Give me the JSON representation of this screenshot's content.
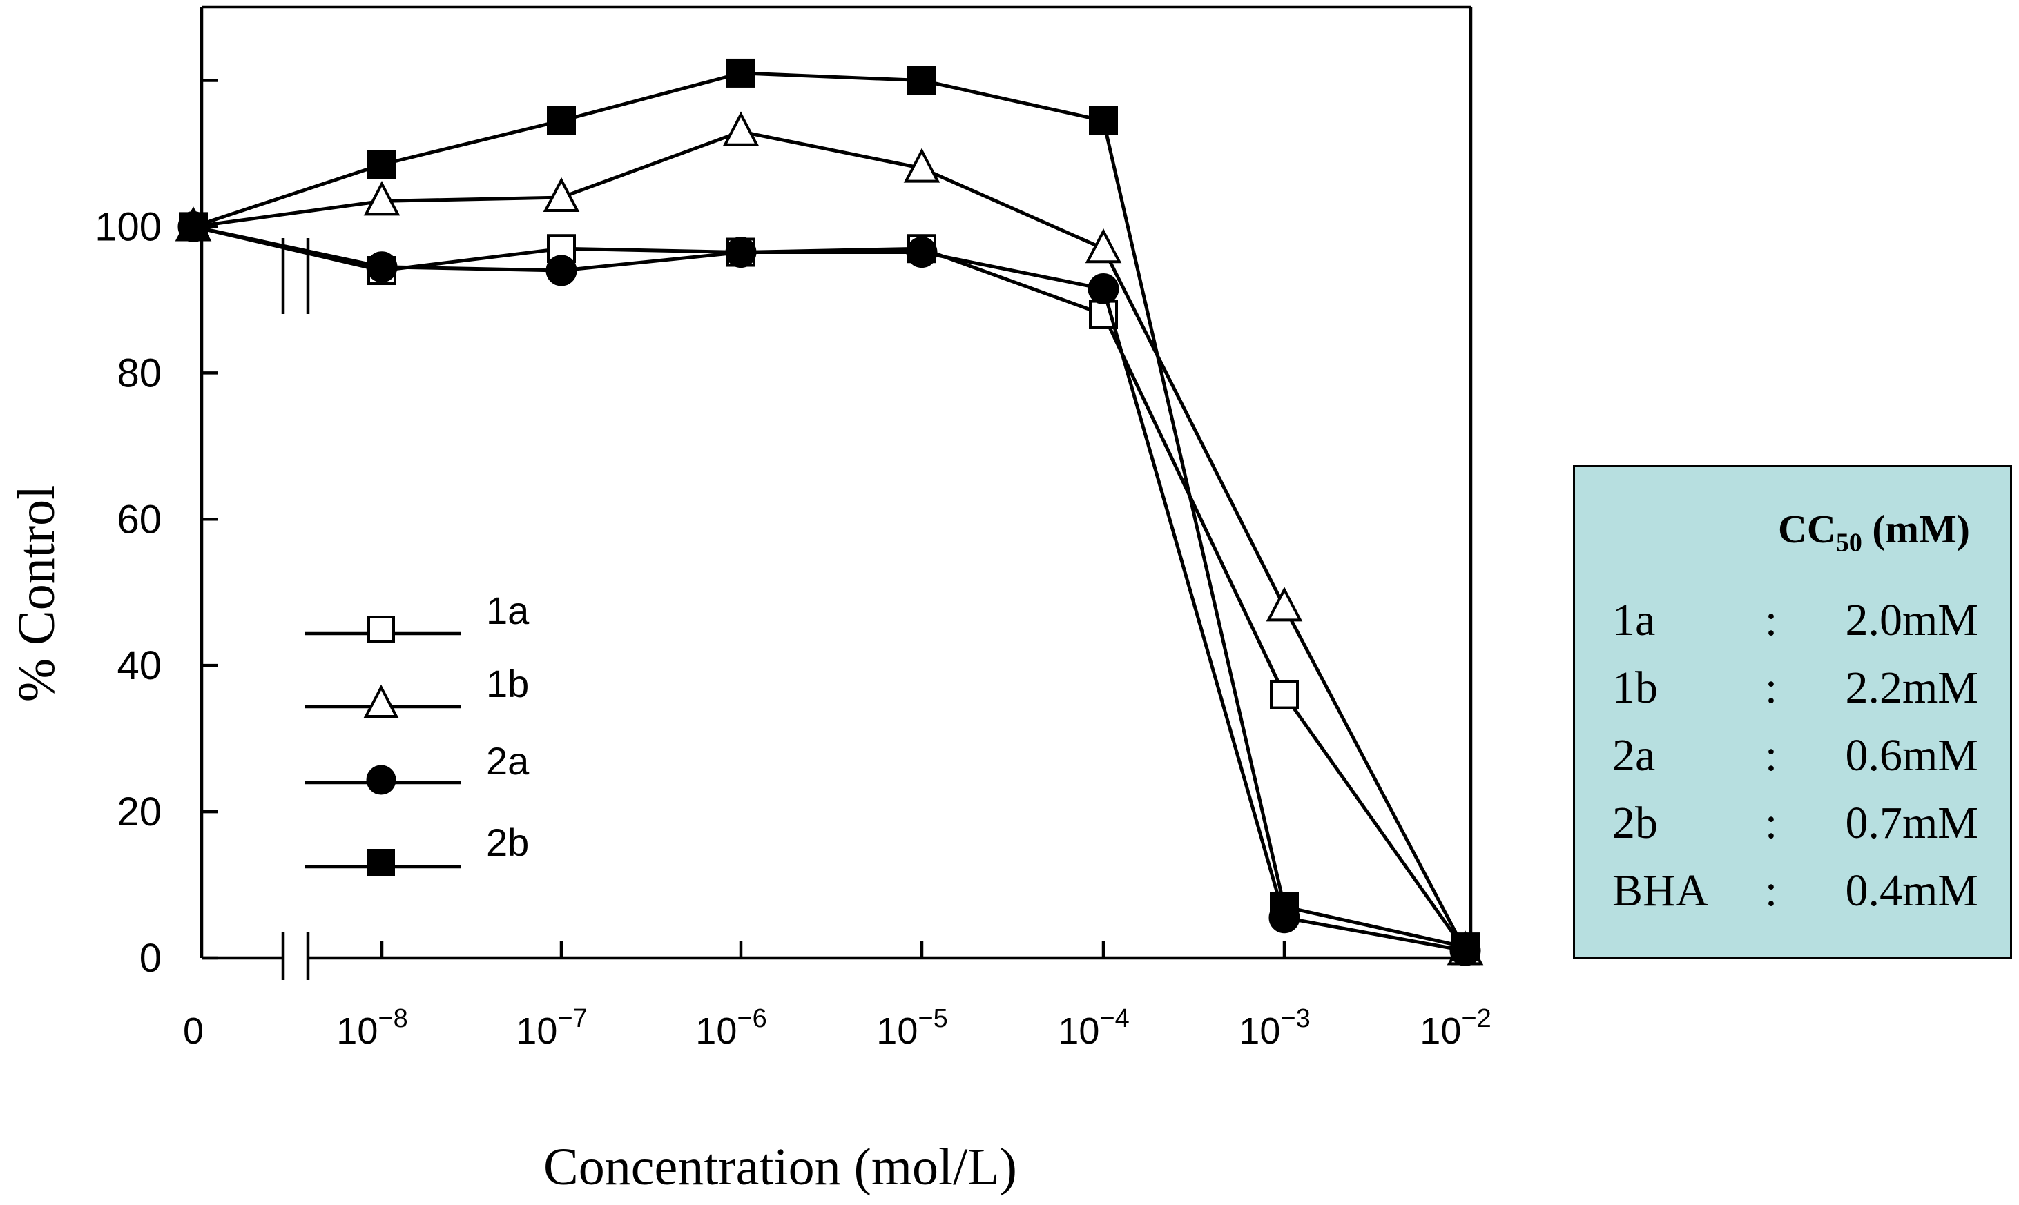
{
  "chart_data": {
    "type": "line",
    "xlabel": "Concentration (mol/L)",
    "ylabel": "% Control",
    "x_ticks": [
      {
        "base": "0",
        "exp": ""
      },
      {
        "base": "10",
        "exp": "−8"
      },
      {
        "base": "10",
        "exp": "−7"
      },
      {
        "base": "10",
        "exp": "−6"
      },
      {
        "base": "10",
        "exp": "−5"
      },
      {
        "base": "10",
        "exp": "−4"
      },
      {
        "base": "10",
        "exp": "−3"
      },
      {
        "base": "10",
        "exp": "−2"
      }
    ],
    "x_scale": "log with axis break between 0 and 10^-8",
    "y_ticks": [
      "0",
      "20",
      "40",
      "60",
      "80",
      "100"
    ],
    "ylim": [
      0,
      120
    ],
    "grid": false,
    "legend_position": "left, middle",
    "series": [
      {
        "name": "1a",
        "marker": "open-square",
        "values": [
          100,
          94,
          97,
          96.5,
          97,
          88,
          36,
          1
        ]
      },
      {
        "name": "1b",
        "marker": "open-triangle",
        "values": [
          100,
          103.5,
          104,
          113,
          108,
          97,
          48,
          1
        ]
      },
      {
        "name": "2a",
        "marker": "filled-circle",
        "values": [
          100,
          94.5,
          94,
          96.5,
          96.5,
          91.5,
          5.5,
          1
        ]
      },
      {
        "name": "2b",
        "marker": "filled-square",
        "values": [
          100,
          108.5,
          114.5,
          121,
          120,
          114.5,
          7,
          1.5
        ]
      }
    ]
  },
  "cc50_box": {
    "title": "CC",
    "title_sub": "50",
    "title_unit": " (mM)",
    "background": "#b7dfe0",
    "rows": [
      {
        "name": "1a",
        "colon": ":",
        "value": "2.0mM"
      },
      {
        "name": "1b",
        "colon": ":",
        "value": "2.2mM"
      },
      {
        "name": "2a",
        "colon": ":",
        "value": "0.6mM"
      },
      {
        "name": "2b",
        "colon": ":",
        "value": "0.7mM"
      },
      {
        "name": "BHA",
        "colon": ":",
        "value": "0.4mM"
      }
    ]
  }
}
